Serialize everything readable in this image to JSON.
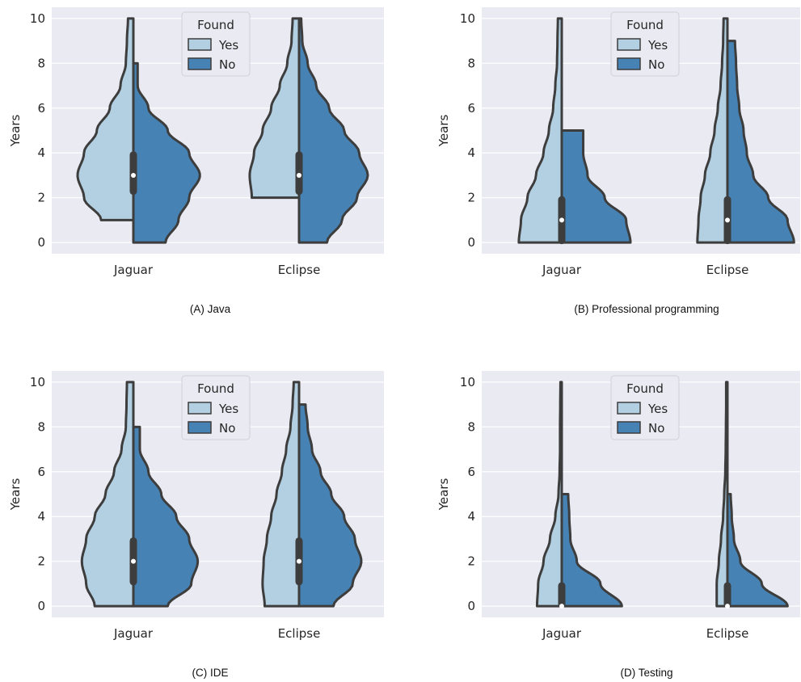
{
  "chart_data": [
    {
      "type": "violin",
      "caption": "(A) Java",
      "ylabel": "Years",
      "ylim": [
        -0.5,
        10.5
      ],
      "yticks": [
        "0",
        "2",
        "4",
        "6",
        "8",
        "10"
      ],
      "categories": [
        "Jaguar",
        "Eclipse"
      ],
      "legend": {
        "title": "Found",
        "entries": [
          "Yes",
          "No"
        ],
        "placement": "upper-center"
      },
      "series": [
        {
          "name": "Yes",
          "color": "#b3d0e2",
          "groups": [
            {
              "range": [
                1,
                10
              ],
              "profile": [
                [
                  1,
                  1.5
                ],
                [
                  2,
                  2.3
                ],
                [
                  3,
                  2.6
                ],
                [
                  4,
                  2.3
                ],
                [
                  5,
                  1.7
                ],
                [
                  6,
                  1.1
                ],
                [
                  7,
                  0.6
                ],
                [
                  8,
                  0.35
                ],
                [
                  9,
                  0.3
                ],
                [
                  10,
                  0.25
                ]
              ]
            },
            {
              "range": [
                2,
                10
              ],
              "profile": [
                [
                  2,
                  2.2
                ],
                [
                  3,
                  2.3
                ],
                [
                  4,
                  2.1
                ],
                [
                  5,
                  1.7
                ],
                [
                  6,
                  1.3
                ],
                [
                  7,
                  0.9
                ],
                [
                  8,
                  0.55
                ],
                [
                  9,
                  0.35
                ],
                [
                  10,
                  0.3
                ]
              ]
            }
          ]
        },
        {
          "name": "No",
          "color": "#4682b4",
          "groups": [
            {
              "range": [
                0,
                8
              ],
              "profile": [
                [
                  0,
                  1.5
                ],
                [
                  1,
                  2.1
                ],
                [
                  2,
                  2.6
                ],
                [
                  3,
                  3.1
                ],
                [
                  4,
                  2.6
                ],
                [
                  5,
                  1.6
                ],
                [
                  6,
                  0.7
                ],
                [
                  7,
                  0.2
                ],
                [
                  8,
                  0.2
                ]
              ]
            },
            {
              "range": [
                0,
                10
              ],
              "profile": [
                [
                  0,
                  1.3
                ],
                [
                  1,
                  2.0
                ],
                [
                  2,
                  2.7
                ],
                [
                  3,
                  3.2
                ],
                [
                  4,
                  2.8
                ],
                [
                  5,
                  2.1
                ],
                [
                  6,
                  1.4
                ],
                [
                  7,
                  0.8
                ],
                [
                  8,
                  0.4
                ],
                [
                  9,
                  0.15
                ],
                [
                  10,
                  0.1
                ]
              ]
            }
          ]
        }
      ],
      "box": [
        {
          "q1": 2.2,
          "median": 3,
          "q3": 4
        },
        {
          "q1": 2.2,
          "median": 3,
          "q3": 4
        }
      ]
    },
    {
      "type": "violin",
      "caption": "(B) Professional programming",
      "ylabel": "Years",
      "ylim": [
        -0.5,
        10.5
      ],
      "yticks": [
        "0",
        "2",
        "4",
        "6",
        "8",
        "10"
      ],
      "categories": [
        "Jaguar",
        "Eclipse"
      ],
      "legend": {
        "title": "Found",
        "entries": [
          "Yes",
          "No"
        ],
        "placement": "upper-center"
      },
      "series": [
        {
          "name": "Yes",
          "color": "#b3d0e2",
          "groups": [
            {
              "range": [
                0,
                10
              ],
              "profile": [
                [
                  0,
                  2.0
                ],
                [
                  1,
                  1.9
                ],
                [
                  2,
                  1.6
                ],
                [
                  3,
                  1.2
                ],
                [
                  4,
                  0.85
                ],
                [
                  5,
                  0.6
                ],
                [
                  6,
                  0.4
                ],
                [
                  7,
                  0.3
                ],
                [
                  8,
                  0.22
                ],
                [
                  9,
                  0.2
                ],
                [
                  10,
                  0.18
                ]
              ]
            },
            {
              "range": [
                0,
                10
              ],
              "profile": [
                [
                  0,
                  1.4
                ],
                [
                  1,
                  1.35
                ],
                [
                  2,
                  1.25
                ],
                [
                  3,
                  1.05
                ],
                [
                  4,
                  0.8
                ],
                [
                  5,
                  0.6
                ],
                [
                  6,
                  0.45
                ],
                [
                  7,
                  0.32
                ],
                [
                  8,
                  0.25
                ],
                [
                  9,
                  0.2
                ],
                [
                  10,
                  0.18
                ]
              ]
            }
          ]
        },
        {
          "name": "No",
          "color": "#4682b4",
          "groups": [
            {
              "range": [
                0,
                5
              ],
              "profile": [
                [
                  0,
                  3.2
                ],
                [
                  1,
                  3.0
                ],
                [
                  2,
                  2.0
                ],
                [
                  3,
                  1.2
                ],
                [
                  4,
                  1.0
                ],
                [
                  5,
                  1.0
                ]
              ]
            },
            {
              "range": [
                0,
                9
              ],
              "profile": [
                [
                  0,
                  3.1
                ],
                [
                  1,
                  2.8
                ],
                [
                  2,
                  1.9
                ],
                [
                  3,
                  1.2
                ],
                [
                  4,
                  0.9
                ],
                [
                  5,
                  0.75
                ],
                [
                  6,
                  0.55
                ],
                [
                  7,
                  0.45
                ],
                [
                  8,
                  0.4
                ],
                [
                  9,
                  0.35
                ]
              ]
            }
          ]
        }
      ],
      "box": [
        {
          "q1": 0,
          "median": 1,
          "q3": 2
        },
        {
          "q1": 0,
          "median": 1,
          "q3": 2
        }
      ]
    },
    {
      "type": "violin",
      "caption": "(C) IDE",
      "ylabel": "Years",
      "ylim": [
        -0.5,
        10.5
      ],
      "yticks": [
        "0",
        "2",
        "4",
        "6",
        "8",
        "10"
      ],
      "categories": [
        "Jaguar",
        "Eclipse"
      ],
      "legend": {
        "title": "Found",
        "entries": [
          "Yes",
          "No"
        ],
        "placement": "upper-center"
      },
      "series": [
        {
          "name": "Yes",
          "color": "#b3d0e2",
          "groups": [
            {
              "range": [
                0,
                10
              ],
              "profile": [
                [
                  0,
                  1.8
                ],
                [
                  1,
                  2.2
                ],
                [
                  2,
                  2.4
                ],
                [
                  3,
                  2.2
                ],
                [
                  4,
                  1.8
                ],
                [
                  5,
                  1.3
                ],
                [
                  6,
                  0.9
                ],
                [
                  7,
                  0.55
                ],
                [
                  8,
                  0.35
                ],
                [
                  9,
                  0.32
                ],
                [
                  10,
                  0.3
                ]
              ]
            },
            {
              "range": [
                0,
                10
              ],
              "profile": [
                [
                  0,
                  1.6
                ],
                [
                  1,
                  1.7
                ],
                [
                  2,
                  1.65
                ],
                [
                  3,
                  1.5
                ],
                [
                  4,
                  1.3
                ],
                [
                  5,
                  1.05
                ],
                [
                  6,
                  0.8
                ],
                [
                  7,
                  0.6
                ],
                [
                  8,
                  0.4
                ],
                [
                  9,
                  0.3
                ],
                [
                  10,
                  0.25
                ]
              ]
            }
          ]
        },
        {
          "name": "No",
          "color": "#4682b4",
          "groups": [
            {
              "range": [
                0,
                8
              ],
              "profile": [
                [
                  0,
                  1.6
                ],
                [
                  1,
                  2.7
                ],
                [
                  2,
                  3.0
                ],
                [
                  3,
                  2.6
                ],
                [
                  4,
                  2.0
                ],
                [
                  5,
                  1.3
                ],
                [
                  6,
                  0.7
                ],
                [
                  7,
                  0.3
                ],
                [
                  8,
                  0.3
                ]
              ]
            },
            {
              "range": [
                0,
                9
              ],
              "profile": [
                [
                  0,
                  1.6
                ],
                [
                  1,
                  2.5
                ],
                [
                  2,
                  2.9
                ],
                [
                  3,
                  2.6
                ],
                [
                  4,
                  2.1
                ],
                [
                  5,
                  1.5
                ],
                [
                  6,
                  1.0
                ],
                [
                  7,
                  0.6
                ],
                [
                  8,
                  0.4
                ],
                [
                  9,
                  0.3
                ]
              ]
            }
          ]
        }
      ],
      "box": [
        {
          "q1": 1,
          "median": 2,
          "q3": 3
        },
        {
          "q1": 1,
          "median": 2,
          "q3": 3
        }
      ]
    },
    {
      "type": "violin",
      "caption": "(D) Testing",
      "ylabel": "Years",
      "ylim": [
        -0.5,
        10.5
      ],
      "yticks": [
        "0",
        "2",
        "4",
        "6",
        "8",
        "10"
      ],
      "categories": [
        "Jaguar",
        "Eclipse"
      ],
      "legend": {
        "title": "Found",
        "entries": [
          "Yes",
          "No"
        ],
        "placement": "upper-center"
      },
      "series": [
        {
          "name": "Yes",
          "color": "#b3d0e2",
          "groups": [
            {
              "range": [
                0,
                10
              ],
              "profile": [
                [
                  0,
                  1.15
                ],
                [
                  1,
                  1.1
                ],
                [
                  2,
                  0.85
                ],
                [
                  3,
                  0.55
                ],
                [
                  4,
                  0.3
                ],
                [
                  5,
                  0.15
                ],
                [
                  6,
                  0.1
                ],
                [
                  7,
                  0.08
                ],
                [
                  8,
                  0.08
                ],
                [
                  9,
                  0.07
                ],
                [
                  10,
                  0.06
                ]
              ]
            },
            {
              "range": [
                0,
                10
              ],
              "profile": [
                [
                  0,
                  0.5
                ],
                [
                  1,
                  0.5
                ],
                [
                  2,
                  0.4
                ],
                [
                  3,
                  0.3
                ],
                [
                  4,
                  0.2
                ],
                [
                  5,
                  0.15
                ],
                [
                  6,
                  0.1
                ],
                [
                  7,
                  0.08
                ],
                [
                  8,
                  0.07
                ],
                [
                  9,
                  0.06
                ],
                [
                  10,
                  0.06
                ]
              ]
            }
          ]
        },
        {
          "name": "No",
          "color": "#4682b4",
          "groups": [
            {
              "range": [
                0,
                5
              ],
              "profile": [
                [
                  0,
                  2.8
                ],
                [
                  1,
                  1.8
                ],
                [
                  2,
                  0.7
                ],
                [
                  3,
                  0.4
                ],
                [
                  4,
                  0.35
                ],
                [
                  5,
                  0.3
                ]
              ]
            },
            {
              "range": [
                0,
                5
              ],
              "profile": [
                [
                  0,
                  2.8
                ],
                [
                  1,
                  1.6
                ],
                [
                  2,
                  0.6
                ],
                [
                  3,
                  0.3
                ],
                [
                  4,
                  0.2
                ],
                [
                  5,
                  0.15
                ]
              ]
            }
          ]
        }
      ],
      "box": [
        {
          "q1": 0,
          "median": 0,
          "q3": 1
        },
        {
          "q1": 0,
          "median": 0,
          "q3": 1
        }
      ]
    }
  ]
}
